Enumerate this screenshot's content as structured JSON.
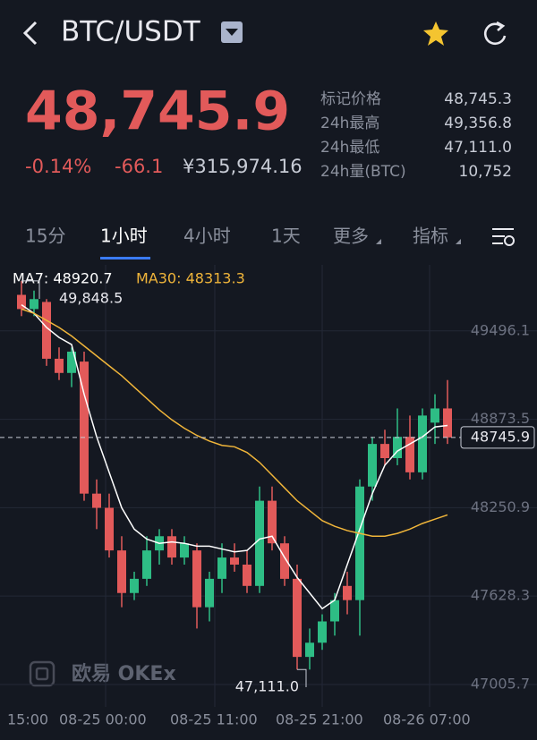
{
  "header": {
    "title": "BTC/USDT"
  },
  "price": {
    "last": "48,745.9",
    "change_pct": "-0.14%",
    "change": "-66.1",
    "cny": "¥315,974.16"
  },
  "stats": [
    {
      "label": "标记价格",
      "value": "48,745.3"
    },
    {
      "label": "24h最高",
      "value": "49,356.8"
    },
    {
      "label": "24h最低",
      "value": "47,111.0"
    },
    {
      "label": "24h量(BTC)",
      "value": "10,752"
    }
  ],
  "tabs": [
    "15分",
    "1小时",
    "4小时",
    "1天",
    "更多",
    "指标"
  ],
  "active_tab": 1,
  "watermark": "欧易 OKEx",
  "chart_data": {
    "type": "candlestick",
    "ylim": [
      46848,
      49936
    ],
    "yticks": [
      49496.1,
      48873.5,
      48250.9,
      47628.3,
      47005.7
    ],
    "last_price": 48745.9,
    "x_labels": [
      "15:00",
      "08-25 00:00",
      "08-25 11:00",
      "08-25 21:00",
      "08-26 07:00"
    ],
    "up_color": "#2ebd85",
    "down_color": "#e25a5a",
    "annotations": [
      {
        "label": "49,848.5",
        "value": 49848.5,
        "candle": 0
      },
      {
        "label": "47,111.0",
        "value": 47111.0,
        "candle": 22
      }
    ],
    "open": [
      49750,
      49650,
      49700,
      49300,
      49200,
      49280,
      48350,
      48250,
      47950,
      47650,
      47750,
      47950,
      48050,
      47900,
      47950,
      47550,
      47750,
      47900,
      47850,
      47700,
      48300,
      48000,
      47750,
      47200,
      47300,
      47450,
      47700,
      47600,
      48400,
      48700,
      48600,
      48750,
      48500,
      48850,
      48950
    ],
    "high": [
      49848.5,
      49780,
      49720,
      49380,
      49380,
      49350,
      48450,
      48350,
      48050,
      47800,
      48050,
      48100,
      48100,
      48050,
      48000,
      47800,
      48000,
      48000,
      47950,
      48400,
      48400,
      48050,
      47850,
      47400,
      47500,
      47650,
      47800,
      48450,
      48750,
      48800,
      48950,
      48900,
      48950,
      49050,
      49150
    ],
    "low": [
      49600,
      49600,
      49250,
      49150,
      49100,
      48300,
      48100,
      47900,
      47550,
      47600,
      47700,
      47850,
      47850,
      47850,
      47400,
      47450,
      47650,
      47800,
      47650,
      47650,
      47950,
      47700,
      47111,
      47111,
      47250,
      47350,
      47500,
      47350,
      48300,
      48550,
      48550,
      48450,
      48450,
      48700,
      48700
    ],
    "close": [
      49650,
      49720,
      49300,
      49200,
      49350,
      48350,
      48250,
      47950,
      47650,
      47750,
      47950,
      48050,
      47900,
      48000,
      47550,
      47750,
      47900,
      47850,
      47700,
      48300,
      48000,
      47750,
      47200,
      47300,
      47450,
      47600,
      47600,
      48400,
      48700,
      48600,
      48750,
      48500,
      48900,
      48950,
      48745.9
    ],
    "series": [
      {
        "name": "MA7: 48920.7",
        "color": "#ffffff",
        "values": [
          49680,
          49620,
          49520,
          49450,
          49400,
          49050,
          48750,
          48500,
          48250,
          48100,
          48030,
          48000,
          48010,
          48000,
          47980,
          47980,
          47960,
          47940,
          47950,
          48030,
          48050,
          47900,
          47760,
          47650,
          47540,
          47600,
          47850,
          48100,
          48350,
          48550,
          48650,
          48700,
          48750,
          48820,
          48830
        ]
      },
      {
        "name": "MA30: 48313.3",
        "color": "#f0b53a",
        "values": [
          49650,
          49620,
          49570,
          49520,
          49460,
          49390,
          49320,
          49250,
          49180,
          49100,
          49020,
          48940,
          48870,
          48810,
          48760,
          48720,
          48690,
          48680,
          48640,
          48570,
          48480,
          48390,
          48300,
          48230,
          48160,
          48120,
          48090,
          48070,
          48050,
          48050,
          48070,
          48100,
          48140,
          48170,
          48200
        ]
      }
    ]
  }
}
